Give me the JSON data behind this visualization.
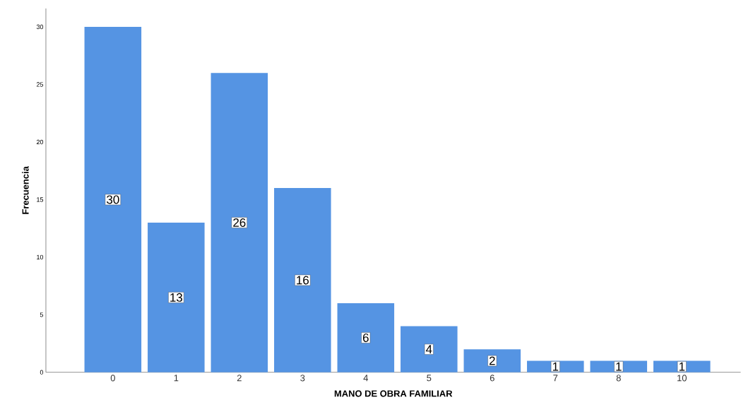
{
  "chart_data": {
    "type": "bar",
    "xlabel": "MANO DE OBRA FAMILIAR",
    "ylabel": "Frecuencia",
    "categories": [
      "0",
      "1",
      "2",
      "3",
      "4",
      "5",
      "6",
      "7",
      "8",
      "10"
    ],
    "values": [
      30,
      13,
      26,
      16,
      6,
      4,
      2,
      1,
      1,
      1
    ],
    "color": "#5594e3",
    "ylim": [
      0,
      31.6
    ],
    "yticks": [
      0,
      5,
      10,
      15,
      20,
      25,
      30
    ],
    "data_labels": true,
    "grid": false
  }
}
